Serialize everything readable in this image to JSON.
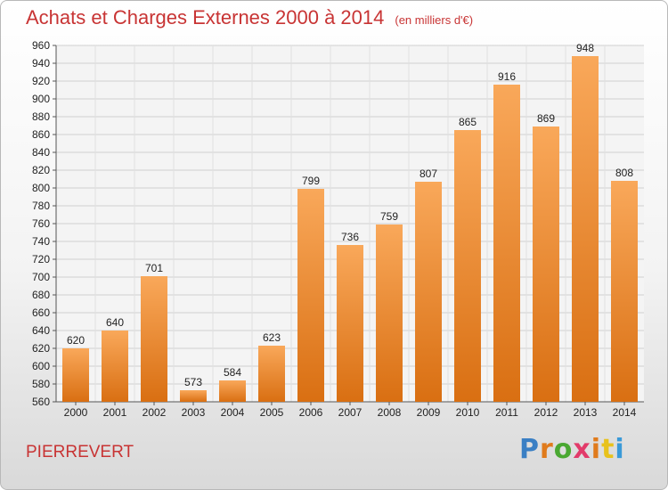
{
  "header": {
    "title": "Achats et Charges Externes 2000 à 2014",
    "subtitle": "(en milliers d'€)"
  },
  "footer": {
    "commune": "PIERREVERT",
    "logo_letters": [
      "P",
      "r",
      "o",
      "x",
      "i",
      "t",
      "i"
    ],
    "logo_colors": [
      "#3a7fc4",
      "#e07b1c",
      "#4aa832",
      "#e23b6a",
      "#e07b1c",
      "#e8c21c",
      "#3a9ad8"
    ]
  },
  "colors": {
    "bar_top": "#f9a85a",
    "bar_bottom": "#d96f12",
    "title": "#c83434"
  },
  "chart_data": {
    "type": "bar",
    "categories": [
      "2000",
      "2001",
      "2002",
      "2003",
      "2004",
      "2005",
      "2006",
      "2007",
      "2008",
      "2009",
      "2010",
      "2011",
      "2012",
      "2013",
      "2014"
    ],
    "values": [
      620,
      640,
      701,
      573,
      584,
      623,
      799,
      736,
      759,
      807,
      865,
      916,
      869,
      948,
      808
    ],
    "ylim": [
      560,
      960
    ],
    "yticks": [
      560,
      580,
      600,
      620,
      640,
      660,
      680,
      700,
      720,
      740,
      760,
      780,
      800,
      820,
      840,
      860,
      880,
      900,
      920,
      940,
      960
    ],
    "grid": true
  }
}
